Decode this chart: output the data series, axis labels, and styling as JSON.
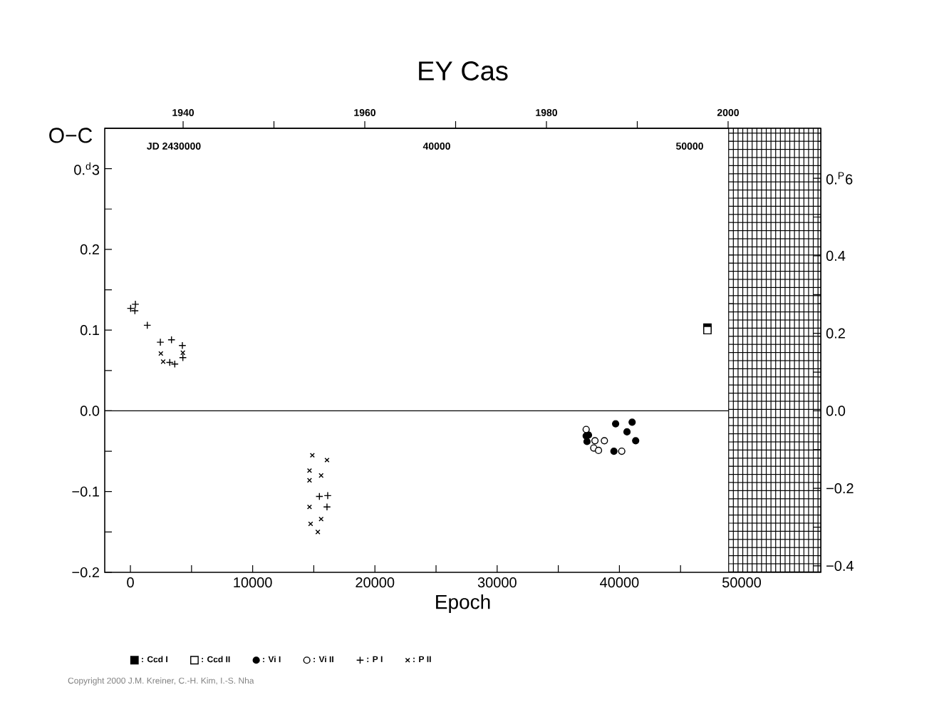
{
  "chart_data": {
    "type": "scatter",
    "title": "EY Cas",
    "xlabel": "Epoch",
    "ylabel": "O−C",
    "xlim": [
      -2100,
      56470
    ],
    "ylim": [
      -0.2,
      0.35
    ],
    "y2lim": [
      -0.4166,
      0.729
    ],
    "x2lim": [
      1931.37,
      2010.2
    ],
    "xticks": [
      0,
      {
        "value": 5000,
        "label": null
      },
      10000,
      {
        "value": 15000,
        "label": null
      },
      20000,
      {
        "value": 25000,
        "label": null
      },
      30000,
      {
        "value": 35000,
        "label": null
      },
      40000,
      {
        "value": 45000,
        "label": null
      },
      50000,
      {
        "value": 55000,
        "label": null
      }
    ],
    "yticks": [
      {
        "value": -0.2,
        "label": "−0.2"
      },
      {
        "value": -0.15,
        "label": null
      },
      {
        "value": -0.1,
        "label": "−0.1"
      },
      {
        "value": -0.05,
        "label": null
      },
      {
        "value": 0,
        "label": "0.0"
      },
      {
        "value": 0.05,
        "label": null
      },
      {
        "value": 0.1,
        "label": "0.1"
      },
      {
        "value": 0.15,
        "label": null
      },
      {
        "value": 0.2,
        "label": "0.2"
      },
      {
        "value": 0.25,
        "label": null
      },
      {
        "value": 0.3,
        "label": "0.$^{d}$3"
      }
    ],
    "y2ticks": [
      {
        "value": -0.4,
        "label": "−0.4"
      },
      {
        "value": -0.3,
        "label": null
      },
      {
        "value": -0.2,
        "label": "−0.2"
      },
      {
        "value": -0.1,
        "label": null
      },
      {
        "value": 0,
        "label": "0.0"
      },
      {
        "value": 0.1,
        "label": null
      },
      {
        "value": 0.2,
        "label": "0.2"
      },
      {
        "value": 0.3,
        "label": null
      },
      {
        "value": 0.4,
        "label": "0.4"
      },
      {
        "value": 0.5,
        "label": null
      },
      {
        "value": 0.6,
        "label": "0.$^{P}$6"
      }
    ],
    "x2ticks": [
      1940,
      {
        "value": 1950,
        "label": null
      },
      1960,
      {
        "value": 1970,
        "label": null
      },
      1980,
      {
        "value": 1990,
        "label": null
      },
      2000
    ],
    "ref_lines": [
      {
        "axis": "y",
        "value": 0,
        "color": "#000000",
        "line_style": "solid"
      }
    ],
    "bands": [
      {
        "axis": "x",
        "from": 48900,
        "to": 56470,
        "color": "#000000"
      }
    ],
    "legend": "bottom",
    "series": [
      {
        "name": ": Ccd I",
        "color": "#000000",
        "marker": "square",
        "x": [
          47200
        ],
        "values": [
          0.103
        ]
      },
      {
        "name": ": Ccd II",
        "color": "#000000",
        "marker": "square-open",
        "x": [
          47200
        ],
        "values": [
          0.1
        ]
      },
      {
        "name": ": Vi I",
        "color": "#000000",
        "marker": "circle",
        "x": [
          37280,
          37470,
          37350,
          39690,
          41040,
          40620,
          41330,
          39550
        ],
        "values": [
          -0.031,
          -0.03,
          -0.038,
          -0.016,
          -0.014,
          -0.026,
          -0.037,
          -0.05
        ]
      },
      {
        "name": ": Vi II",
        "color": "#000000",
        "marker": "circle-open",
        "x": [
          37280,
          38000,
          38770,
          37900,
          38290,
          40190
        ],
        "values": [
          -0.023,
          -0.037,
          -0.037,
          -0.046,
          -0.049,
          -0.05
        ]
      },
      {
        "name": ": P I",
        "color": "#000000",
        "marker": "plus",
        "x": [
          408,
          20,
          367,
          1380,
          2450,
          3360,
          4250,
          4290,
          3220,
          3630,
          15460,
          16140,
          16080
        ],
        "values": [
          0.132,
          0.127,
          0.124,
          0.106,
          0.085,
          0.088,
          0.081,
          0.066,
          0.06,
          0.058,
          -0.106,
          -0.105,
          -0.119
        ]
      },
      {
        "name": ": P II",
        "color": "#000000",
        "marker": "cross",
        "x": [
          2490,
          4290,
          2680,
          14880,
          16080,
          14650,
          15600,
          14650,
          14650,
          15600,
          14740,
          15330
        ],
        "values": [
          0.071,
          0.072,
          0.061,
          -0.055,
          -0.061,
          -0.074,
          -0.08,
          -0.086,
          -0.119,
          -0.134,
          -0.14,
          -0.15
        ]
      }
    ],
    "annotations": [
      "JD 2430000",
      "40000",
      "50000",
      "Copyright 2000 J.M. Kreiner, C.-H. Kim, I.-S. Nha"
    ]
  }
}
